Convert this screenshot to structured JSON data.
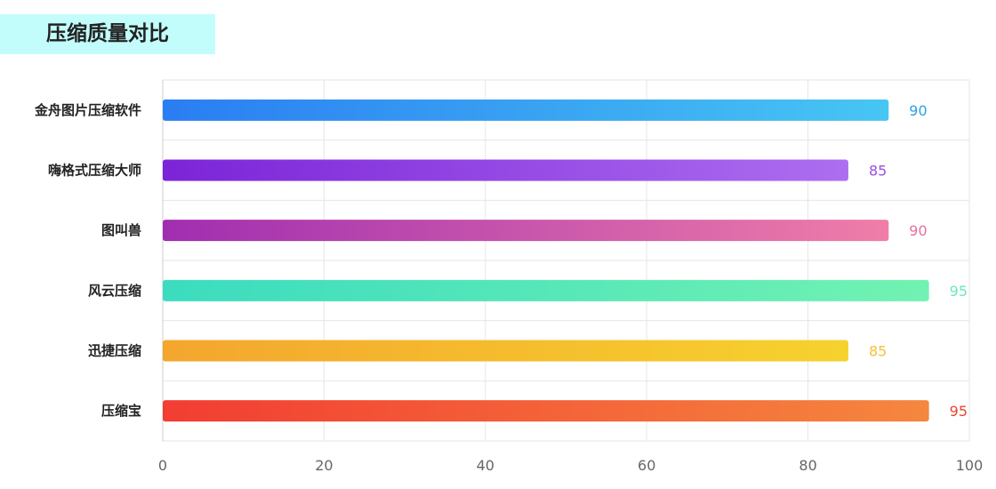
{
  "title": "压缩质量对比",
  "chart_data": {
    "type": "bar",
    "orientation": "horizontal",
    "title": "压缩质量对比",
    "xlabel": "",
    "ylabel": "",
    "xlim": [
      0,
      100
    ],
    "x_ticks": [
      "0",
      "20",
      "40",
      "60",
      "80",
      "100"
    ],
    "grid": true,
    "categories": [
      "金舟图片压缩软件",
      "嗨格式压缩大师",
      "图叫兽",
      "风云压缩",
      "迅捷压缩",
      "压缩宝"
    ],
    "values": [
      90,
      85,
      90,
      95,
      85,
      95
    ],
    "bar_gradients": [
      [
        "#2a7df2",
        "#47c6f3"
      ],
      [
        "#7b24d8",
        "#ad6ef0"
      ],
      [
        "#a02eb0",
        "#f07ea8"
      ],
      [
        "#3bdcbf",
        "#72f2b2"
      ],
      [
        "#f4a62e",
        "#f6d22e"
      ],
      [
        "#f23d33",
        "#f5873e"
      ]
    ],
    "value_label_colors": [
      "#2aa0e6",
      "#9a4fe8",
      "#e86fa0",
      "#6ee6b8",
      "#f5c03a",
      "#e8452e"
    ]
  }
}
